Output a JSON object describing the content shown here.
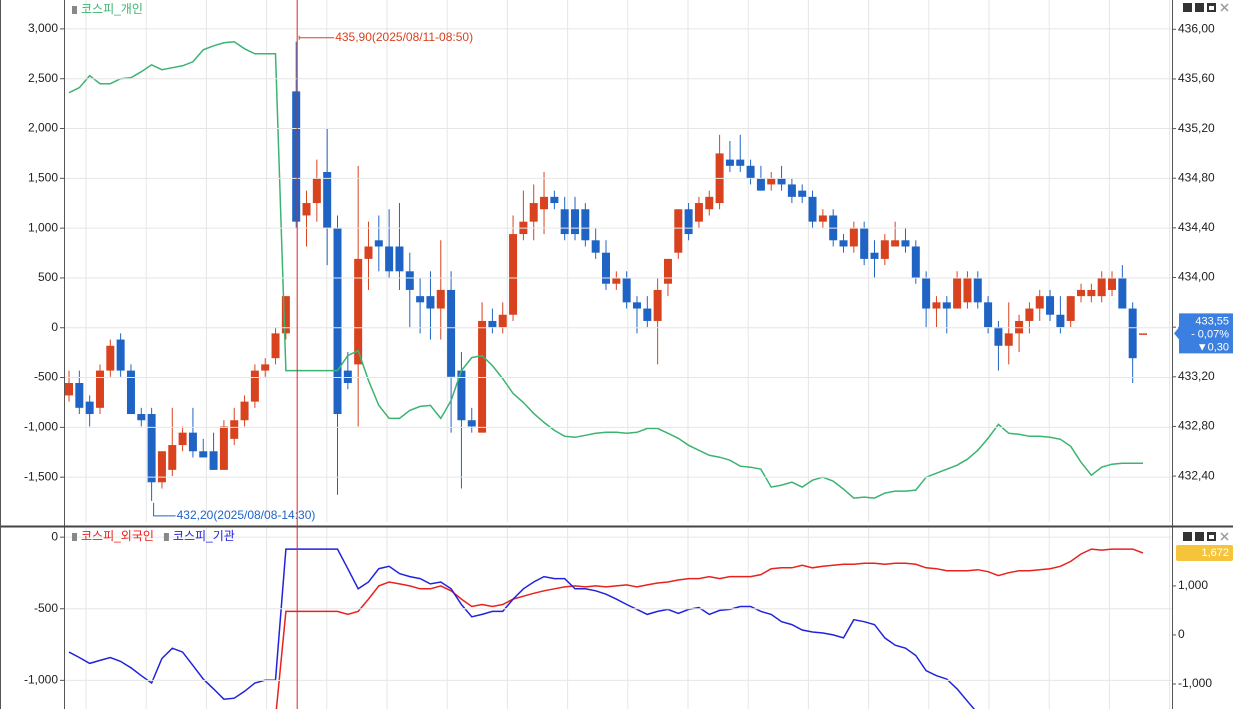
{
  "chart_data": [
    {
      "type": "candlestick",
      "up_color": "#d8421f",
      "down_color": "#1f64c4",
      "open": [
        433.05,
        433.15,
        433.0,
        432.95,
        433.25,
        433.5,
        433.25,
        432.9,
        432.9,
        432.35,
        432.45,
        432.65,
        432.75,
        432.6,
        432.6,
        432.45,
        432.7,
        432.85,
        433.0,
        433.25,
        433.35,
        433.55,
        435.5,
        434.5,
        434.6,
        434.85,
        434.4,
        433.25,
        433.3,
        434.15,
        434.3,
        434.25,
        434.25,
        434.05,
        433.85,
        433.85,
        433.75,
        433.9,
        433.25,
        432.85,
        432.75,
        433.65,
        433.6,
        433.7,
        434.35,
        434.45,
        434.55,
        434.65,
        434.55,
        434.55,
        434.55,
        434.3,
        434.2,
        433.95,
        434.0,
        433.8,
        433.75,
        433.65,
        433.95,
        434.2,
        434.55,
        434.45,
        434.55,
        434.6,
        434.95,
        434.95,
        434.9,
        434.8,
        434.75,
        434.8,
        434.75,
        434.7,
        434.65,
        434.45,
        434.5,
        434.3,
        434.25,
        434.4,
        434.2,
        434.15,
        434.25,
        434.3,
        434.25,
        434.0,
        433.75,
        433.8,
        433.75,
        433.8,
        434.0,
        433.8,
        433.6,
        433.45,
        433.55,
        433.65,
        433.75,
        433.85,
        433.7,
        433.65,
        433.85,
        433.85,
        433.85,
        433.9,
        434.0,
        433.75,
        433.55
      ],
      "high": [
        433.25,
        433.25,
        433.05,
        433.3,
        433.5,
        433.55,
        433.3,
        432.95,
        432.95,
        432.6,
        432.95,
        432.8,
        432.95,
        432.7,
        432.75,
        432.85,
        432.95,
        433.05,
        433.3,
        433.35,
        433.6,
        433.85,
        435.9,
        434.7,
        434.95,
        435.2,
        434.5,
        433.4,
        434.9,
        434.45,
        434.5,
        434.55,
        434.6,
        434.2,
        434.0,
        434.05,
        434.3,
        434.05,
        433.4,
        432.95,
        433.8,
        433.75,
        433.8,
        434.5,
        434.7,
        434.75,
        434.85,
        434.7,
        434.65,
        434.65,
        434.6,
        434.4,
        434.3,
        434.05,
        434.05,
        433.85,
        433.85,
        434.0,
        434.15,
        434.55,
        434.6,
        434.65,
        434.7,
        435.15,
        435.1,
        435.15,
        434.95,
        434.9,
        434.85,
        434.9,
        434.8,
        434.75,
        434.7,
        434.55,
        434.55,
        434.35,
        434.45,
        434.45,
        434.3,
        434.35,
        434.45,
        434.4,
        434.3,
        434.05,
        433.85,
        433.85,
        434.05,
        434.05,
        434.05,
        433.85,
        433.65,
        433.8,
        433.7,
        433.8,
        433.9,
        433.9,
        433.85,
        433.85,
        433.95,
        433.95,
        434.05,
        434.05,
        434.1,
        433.8,
        433.55
      ],
      "low": [
        433.0,
        432.9,
        432.8,
        432.9,
        433.2,
        433.2,
        432.9,
        432.8,
        432.2,
        432.3,
        432.4,
        432.6,
        432.55,
        432.55,
        432.45,
        432.45,
        432.65,
        432.8,
        432.95,
        433.2,
        433.3,
        433.5,
        434.4,
        434.25,
        434.45,
        434.1,
        432.25,
        433.1,
        432.8,
        433.9,
        434.05,
        434.0,
        433.9,
        433.6,
        433.55,
        433.5,
        433.5,
        432.75,
        432.3,
        432.75,
        432.75,
        433.55,
        433.55,
        433.65,
        434.3,
        434.3,
        434.35,
        434.55,
        434.3,
        434.3,
        434.25,
        434.15,
        433.9,
        433.9,
        433.75,
        433.55,
        433.6,
        433.3,
        433.85,
        434.15,
        434.3,
        434.4,
        434.5,
        434.55,
        434.85,
        434.85,
        434.75,
        434.7,
        434.7,
        434.7,
        434.6,
        434.6,
        434.4,
        434.4,
        434.25,
        434.2,
        434.2,
        434.1,
        434.0,
        434.1,
        434.25,
        434.2,
        433.95,
        433.6,
        433.6,
        433.55,
        433.75,
        433.75,
        433.75,
        433.55,
        433.25,
        433.3,
        433.4,
        433.55,
        433.65,
        433.65,
        433.55,
        433.6,
        433.8,
        433.8,
        433.8,
        433.85,
        433.75,
        433.15,
        433.55
      ],
      "close": [
        433.15,
        432.95,
        432.9,
        433.25,
        433.45,
        433.25,
        432.9,
        432.85,
        432.35,
        432.6,
        432.65,
        432.75,
        432.6,
        432.55,
        432.45,
        432.8,
        432.85,
        433.0,
        433.25,
        433.3,
        433.55,
        433.85,
        434.45,
        434.6,
        434.8,
        434.4,
        432.9,
        433.15,
        434.15,
        434.25,
        434.25,
        434.05,
        434.05,
        433.9,
        433.8,
        433.75,
        433.9,
        433.2,
        432.85,
        432.8,
        433.65,
        433.6,
        433.7,
        434.35,
        434.45,
        434.6,
        434.65,
        434.6,
        434.35,
        434.35,
        434.3,
        434.2,
        433.95,
        434.0,
        433.8,
        433.75,
        433.65,
        433.9,
        434.15,
        434.55,
        434.35,
        434.6,
        434.65,
        435.0,
        434.9,
        434.9,
        434.8,
        434.7,
        434.8,
        434.75,
        434.65,
        434.65,
        434.45,
        434.5,
        434.3,
        434.25,
        434.4,
        434.15,
        434.15,
        434.3,
        434.3,
        434.25,
        434.0,
        433.75,
        433.8,
        433.75,
        434.0,
        434.0,
        433.8,
        433.6,
        433.45,
        433.55,
        433.65,
        433.75,
        433.85,
        433.7,
        433.6,
        433.85,
        433.9,
        433.9,
        434.0,
        434.0,
        433.75,
        433.35,
        433.55
      ],
      "series": [
        {
          "name": "코스피_개인",
          "color": "#3cb371",
          "axis": "y",
          "values": [
            2360,
            2410,
            2530,
            2450,
            2450,
            2500,
            2510,
            2570,
            2640,
            2590,
            2610,
            2630,
            2670,
            2790,
            2830,
            2860,
            2870,
            2800,
            2750,
            2750,
            2750,
            -430,
            -430,
            -430,
            -430,
            -430,
            -430,
            -280,
            -230,
            -530,
            -780,
            -910,
            -910,
            -830,
            -790,
            -780,
            -910,
            -730,
            -430,
            -300,
            -280,
            -380,
            -510,
            -660,
            -750,
            -860,
            -950,
            -1030,
            -1090,
            -1100,
            -1080,
            -1060,
            -1050,
            -1050,
            -1060,
            -1050,
            -1010,
            -1010,
            -1060,
            -1110,
            -1180,
            -1230,
            -1280,
            -1300,
            -1330,
            -1390,
            -1400,
            -1420,
            -1600,
            -1580,
            -1550,
            -1600,
            -1530,
            -1500,
            -1540,
            -1620,
            -1710,
            -1700,
            -1710,
            -1660,
            -1640,
            -1640,
            -1630,
            -1500,
            -1460,
            -1420,
            -1380,
            -1320,
            -1230,
            -1110,
            -970,
            -1060,
            -1070,
            -1090,
            -1090,
            -1100,
            -1120,
            -1190,
            -1350,
            -1480,
            -1400,
            -1370,
            -1360,
            -1360,
            -1360
          ]
        }
      ],
      "ylim": [
        -1950,
        3270
      ],
      "yticks": [
        {
          "value": 3000,
          "label": "3,000"
        },
        {
          "value": 2500,
          "label": "2,500"
        },
        {
          "value": 2000,
          "label": "2,000"
        },
        {
          "value": 1500,
          "label": "1,500"
        },
        {
          "value": 1000,
          "label": "1,000"
        },
        500,
        0,
        -500,
        {
          "value": -1000,
          "label": "-1,000"
        },
        {
          "value": -1500,
          "label": "-1,500"
        }
      ],
      "y2lim": [
        432.03,
        436.22
      ],
      "y2ticks": [
        {
          "value": 436.0,
          "label": "436,00"
        },
        {
          "value": 435.6,
          "label": "435,60"
        },
        {
          "value": 435.2,
          "label": "435,20"
        },
        {
          "value": 434.8,
          "label": "434,80"
        },
        {
          "value": 434.4,
          "label": "434,40"
        },
        {
          "value": 434.0,
          "label": "434,00"
        },
        {
          "value": 433.6,
          "label": "433,60"
        },
        {
          "value": 433.2,
          "label": "433,20"
        },
        {
          "value": 432.8,
          "label": "432,80"
        },
        {
          "value": 432.4,
          "label": "432,40"
        }
      ],
      "grid": true,
      "high_label": "435,90(2025/08/11-08:50)",
      "low_label": "432,20(2025/08/08-14:30)",
      "price_box": {
        "price": {
          "value": 433.55,
          "label": "433,55"
        },
        "change_pct": "- 0,07%",
        "change": "▼0,30"
      }
    },
    {
      "type": "line",
      "series": [
        {
          "name": "코스피_외국인",
          "color": "#e8221c",
          "axis": "y2",
          "values": [
            null,
            null,
            null,
            null,
            null,
            null,
            null,
            null,
            null,
            null,
            null,
            null,
            null,
            null,
            null,
            null,
            null,
            null,
            null,
            null,
            -1700,
            480,
            480,
            480,
            480,
            480,
            480,
            420,
            480,
            730,
            1000,
            1080,
            1040,
            1000,
            940,
            940,
            1000,
            900,
            730,
            580,
            620,
            580,
            620,
            730,
            790,
            850,
            900,
            940,
            980,
            1000,
            980,
            1000,
            980,
            1000,
            1020,
            980,
            1020,
            1060,
            1080,
            1120,
            1150,
            1150,
            1190,
            1150,
            1190,
            1190,
            1190,
            1230,
            1350,
            1370,
            1370,
            1420,
            1370,
            1400,
            1420,
            1440,
            1440,
            1460,
            1460,
            1440,
            1460,
            1460,
            1440,
            1370,
            1350,
            1310,
            1310,
            1310,
            1330,
            1290,
            1210,
            1270,
            1310,
            1310,
            1330,
            1350,
            1400,
            1500,
            1650,
            1750,
            1730,
            1750,
            1750,
            1750,
            1672
          ],
          "value_labels": [
            null,
            null,
            null,
            null,
            null,
            null,
            null,
            null,
            null,
            null,
            null,
            null,
            null,
            null,
            null,
            null,
            null,
            null,
            null,
            null,
            null,
            null,
            null,
            null,
            null,
            null,
            null,
            null,
            null,
            null,
            null,
            null,
            null,
            null,
            null,
            null,
            null,
            null,
            null,
            null,
            null,
            null,
            null,
            null,
            null,
            null,
            null,
            null,
            null,
            null,
            null,
            null,
            null,
            null,
            null,
            null,
            null,
            null,
            null,
            null,
            null,
            null,
            null,
            null,
            null,
            null,
            null,
            null,
            null,
            null,
            null,
            null,
            null,
            null,
            null,
            null,
            null,
            null,
            null,
            null,
            null,
            null,
            null,
            null,
            null,
            null,
            null,
            null,
            null,
            null,
            null,
            null,
            null,
            null,
            null,
            null,
            null,
            null,
            null,
            null,
            null,
            null,
            null,
            null,
            "1,672"
          ]
        },
        {
          "name": "코스피_기관",
          "color": "#2222dd",
          "axis": "y2",
          "values": [
            -350,
            -460,
            -580,
            -520,
            -460,
            -540,
            -670,
            -830,
            -980,
            -480,
            -270,
            -350,
            -620,
            -900,
            -1100,
            -1310,
            -1290,
            -1150,
            -980,
            -920,
            -920,
            1750,
            1750,
            1750,
            1750,
            1750,
            1750,
            1350,
            940,
            1080,
            1350,
            1400,
            1250,
            1190,
            1150,
            1040,
            1080,
            940,
            620,
            370,
            420,
            480,
            480,
            730,
            940,
            1080,
            1190,
            1150,
            1150,
            940,
            940,
            900,
            830,
            730,
            620,
            520,
            420,
            480,
            520,
            440,
            520,
            560,
            420,
            500,
            520,
            580,
            580,
            480,
            420,
            270,
            210,
            100,
            60,
            40,
            0,
            -60,
            310,
            270,
            210,
            -60,
            -210,
            -270,
            -420,
            -730,
            -830,
            -900,
            -1100,
            -1350,
            -1600,
            null,
            null,
            null,
            null,
            null,
            null,
            null,
            null,
            null,
            null,
            null,
            null,
            null,
            null,
            null,
            null
          ]
        }
      ],
      "ylim": [
        -1200,
        50
      ],
      "yticks": [
        0,
        -500,
        {
          "value": -1000,
          "label": "-1,000"
        }
      ],
      "y2lim": [
        -1510,
        2140
      ],
      "y2ticks": [
        {
          "value": 1000,
          "label": "1,000"
        },
        0,
        {
          "value": -1000,
          "label": "-1,000"
        }
      ],
      "grid": true
    }
  ]
}
